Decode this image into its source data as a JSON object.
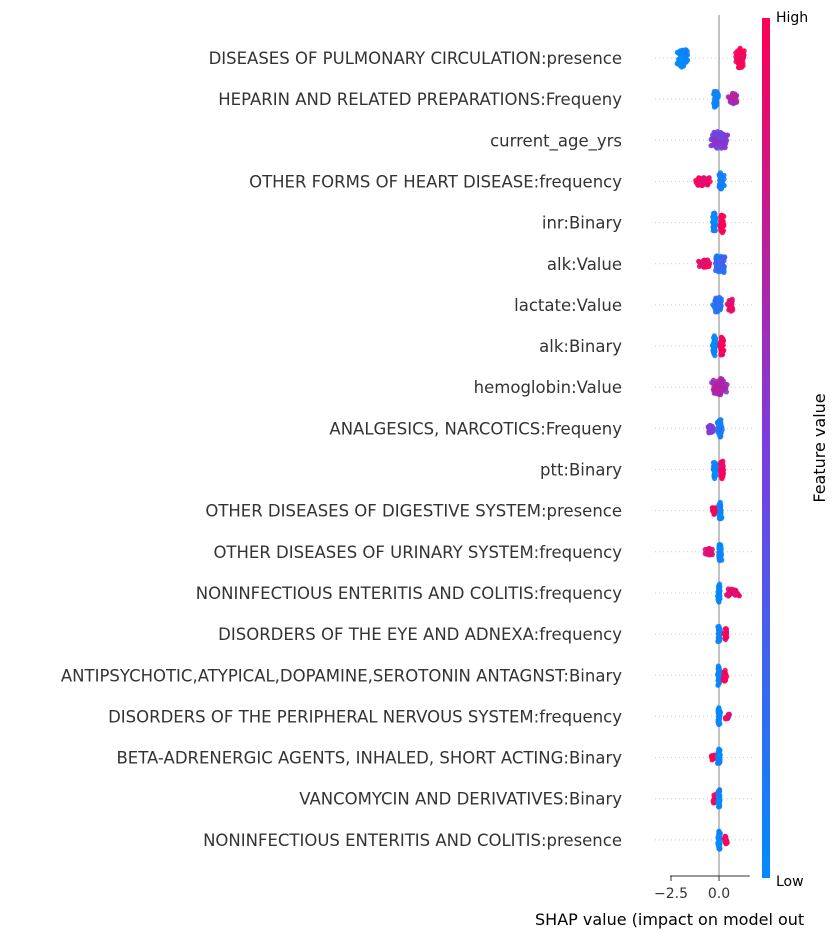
{
  "chart_data": {
    "type": "scatter",
    "subtype": "shap-beeswarm-summary",
    "xlabel": "SHAP value (impact on model out",
    "xticks": [
      -2.5,
      0.0
    ],
    "xtick_labels": [
      "−2.5",
      "0.0"
    ],
    "xlim": [
      -2.55,
      1.6
    ],
    "colorbar": {
      "title": "Feature value",
      "high_label": "High",
      "low_label": "Low",
      "high_color": "#ff0052",
      "low_color": "#008bfb"
    },
    "features": [
      {
        "name": "DISEASES OF PULMONARY CIRCULATION:presence",
        "clusters": [
          {
            "center": -1.9,
            "spread": 0.45,
            "width": 10,
            "low": 1.0,
            "n": 80
          },
          {
            "center": 1.1,
            "spread": 0.35,
            "width": 10,
            "low": 0.0,
            "n": 70
          }
        ]
      },
      {
        "name": "HEPARIN AND RELATED PREPARATIONS:Frequeny",
        "clusters": [
          {
            "center": -0.15,
            "spread": 0.2,
            "width": 9,
            "low": 0.95,
            "n": 45
          },
          {
            "center": 0.75,
            "spread": 0.35,
            "width": 6,
            "low": 0.35,
            "n": 30
          }
        ]
      },
      {
        "name": "current_age_yrs",
        "clusters": [
          {
            "center": 0.0,
            "spread": 0.75,
            "width": 9,
            "low": 0.5,
            "n": 110
          }
        ]
      },
      {
        "name": "OTHER FORMS OF HEART DISEASE:frequency",
        "clusters": [
          {
            "center": -0.9,
            "spread": 0.7,
            "width": 5,
            "low": 0.05,
            "n": 35
          },
          {
            "center": 0.1,
            "spread": 0.25,
            "width": 9,
            "low": 0.95,
            "n": 50
          }
        ]
      },
      {
        "name": "inr:Binary",
        "clusters": [
          {
            "center": -0.25,
            "spread": 0.15,
            "width": 11,
            "low": 1.0,
            "n": 45
          },
          {
            "center": 0.15,
            "spread": 0.15,
            "width": 11,
            "low": 0.0,
            "n": 45
          }
        ]
      },
      {
        "name": "alk:Value",
        "clusters": [
          {
            "center": -0.75,
            "spread": 0.6,
            "width": 5,
            "low": 0.1,
            "n": 30
          },
          {
            "center": 0.05,
            "spread": 0.4,
            "width": 9,
            "low": 0.8,
            "n": 70
          }
        ]
      },
      {
        "name": "lactate:Value",
        "clusters": [
          {
            "center": -0.05,
            "spread": 0.4,
            "width": 9,
            "low": 0.85,
            "n": 60
          },
          {
            "center": 0.6,
            "spread": 0.3,
            "width": 7,
            "low": 0.1,
            "n": 30
          }
        ]
      },
      {
        "name": "alk:Binary",
        "clusters": [
          {
            "center": -0.25,
            "spread": 0.15,
            "width": 11,
            "low": 1.0,
            "n": 45
          },
          {
            "center": 0.15,
            "spread": 0.15,
            "width": 11,
            "low": 0.0,
            "n": 45
          }
        ]
      },
      {
        "name": "hemoglobin:Value",
        "clusters": [
          {
            "center": 0.0,
            "spread": 0.55,
            "width": 9,
            "low": 0.35,
            "n": 80
          }
        ]
      },
      {
        "name": "ANALGESICS, NARCOTICS:Frequeny",
        "clusters": [
          {
            "center": -0.45,
            "spread": 0.3,
            "width": 5,
            "low": 0.4,
            "n": 20
          },
          {
            "center": 0.05,
            "spread": 0.2,
            "width": 10,
            "low": 0.95,
            "n": 45
          }
        ]
      },
      {
        "name": "ptt:Binary",
        "clusters": [
          {
            "center": -0.2,
            "spread": 0.15,
            "width": 10,
            "low": 1.0,
            "n": 40
          },
          {
            "center": 0.15,
            "spread": 0.15,
            "width": 10,
            "low": 0.0,
            "n": 40
          }
        ]
      },
      {
        "name": "OTHER DISEASES OF DIGESTIVE SYSTEM:presence",
        "clusters": [
          {
            "center": -0.25,
            "spread": 0.2,
            "width": 5,
            "low": 0.0,
            "n": 20
          },
          {
            "center": 0.05,
            "spread": 0.12,
            "width": 10,
            "low": 1.0,
            "n": 45
          }
        ]
      },
      {
        "name": "OTHER DISEASES OF URINARY SYSTEM:frequency",
        "clusters": [
          {
            "center": -0.55,
            "spread": 0.4,
            "width": 4,
            "low": 0.1,
            "n": 22
          },
          {
            "center": 0.05,
            "spread": 0.12,
            "width": 10,
            "low": 1.0,
            "n": 45
          }
        ]
      },
      {
        "name": "NONINFECTIOUS ENTERITIS AND COLITIS:frequency",
        "clusters": [
          {
            "center": 0.0,
            "spread": 0.1,
            "width": 10,
            "low": 1.0,
            "n": 45
          },
          {
            "center": 0.75,
            "spread": 0.6,
            "width": 4,
            "low": 0.1,
            "n": 28
          }
        ]
      },
      {
        "name": "DISORDERS OF THE EYE AND ADNEXA:frequency",
        "clusters": [
          {
            "center": 0.0,
            "spread": 0.1,
            "width": 10,
            "low": 1.0,
            "n": 45
          },
          {
            "center": 0.35,
            "spread": 0.2,
            "width": 6,
            "low": 0.05,
            "n": 20
          }
        ]
      },
      {
        "name": "ANTIPSYCHOTIC,ATYPICAL,DOPAMINE,SEROTONIN ANTAGNST:Binary",
        "clusters": [
          {
            "center": 0.0,
            "spread": 0.1,
            "width": 11,
            "low": 1.0,
            "n": 45
          },
          {
            "center": 0.3,
            "spread": 0.15,
            "width": 7,
            "low": 0.0,
            "n": 20
          }
        ]
      },
      {
        "name": "DISORDERS OF THE PERIPHERAL NERVOUS SYSTEM:frequency",
        "clusters": [
          {
            "center": 0.0,
            "spread": 0.1,
            "width": 10,
            "low": 1.0,
            "n": 45
          },
          {
            "center": 0.45,
            "spread": 0.2,
            "width": 3,
            "low": 0.05,
            "n": 15
          }
        ]
      },
      {
        "name": "BETA-ADRENERGIC AGENTS, INHALED, SHORT ACTING:Binary",
        "clusters": [
          {
            "center": -0.3,
            "spread": 0.2,
            "width": 3,
            "low": 0.0,
            "n": 15
          },
          {
            "center": 0.0,
            "spread": 0.1,
            "width": 10,
            "low": 1.0,
            "n": 45
          }
        ]
      },
      {
        "name": "VANCOMYCIN AND DERIVATIVES:Binary",
        "clusters": [
          {
            "center": -0.2,
            "spread": 0.2,
            "width": 5,
            "low": 0.0,
            "n": 18
          },
          {
            "center": 0.0,
            "spread": 0.1,
            "width": 10,
            "low": 1.0,
            "n": 45
          }
        ]
      },
      {
        "name": "NONINFECTIOUS ENTERITIS AND COLITIS:presence",
        "clusters": [
          {
            "center": 0.0,
            "spread": 0.1,
            "width": 10,
            "low": 1.0,
            "n": 45
          },
          {
            "center": 0.35,
            "spread": 0.15,
            "width": 5,
            "low": 0.05,
            "n": 18
          }
        ]
      }
    ]
  }
}
